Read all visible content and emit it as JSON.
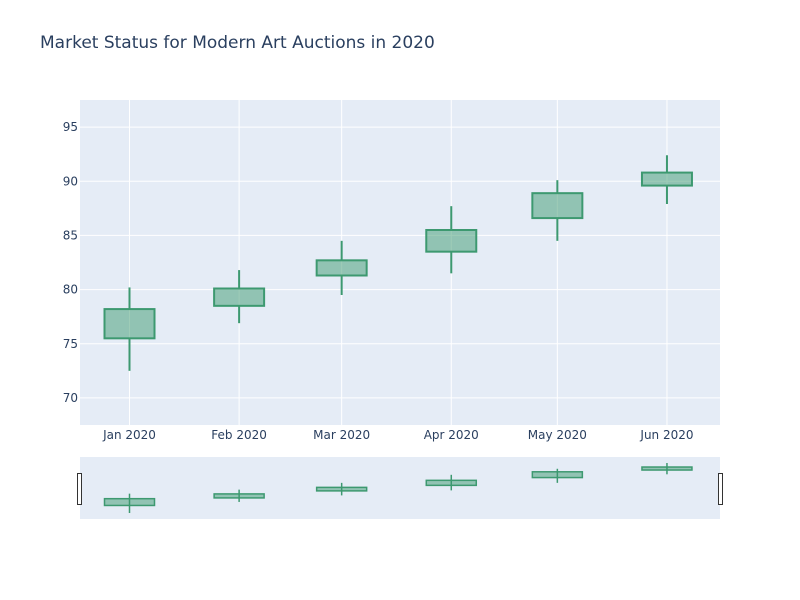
{
  "chart_data": {
    "type": "candlestick",
    "title": "Market Status for Modern Art Auctions in 2020",
    "xlabel": "",
    "ylabel": "",
    "x": [
      "2020-01-15",
      "2020-02-15",
      "2020-03-15",
      "2020-04-15",
      "2020-05-15",
      "2020-06-15"
    ],
    "x_tick_labels": [
      "Jan 2020",
      "Feb 2020",
      "Mar 2020",
      "Apr 2020",
      "May 2020",
      "Jun 2020"
    ],
    "open": [
      75.5,
      78.5,
      81.3,
      83.5,
      86.6,
      89.6
    ],
    "high": [
      80.2,
      81.8,
      84.5,
      87.7,
      90.1,
      92.4
    ],
    "low": [
      72.5,
      76.9,
      79.5,
      81.5,
      84.5,
      87.9
    ],
    "close": [
      78.2,
      80.1,
      82.7,
      85.5,
      88.9,
      90.8
    ],
    "ylim": [
      67.5,
      97.5
    ],
    "y_ticks": [
      70,
      75,
      80,
      85,
      90,
      95
    ],
    "grid": true,
    "rangeslider": true,
    "colors": {
      "increasing": "#3d9970",
      "increasing_fill": "rgba(61,153,112,0.5)",
      "plot_bg": "#e5ecf6",
      "grid": "#ffffff",
      "text": "#2a3f5f"
    }
  }
}
